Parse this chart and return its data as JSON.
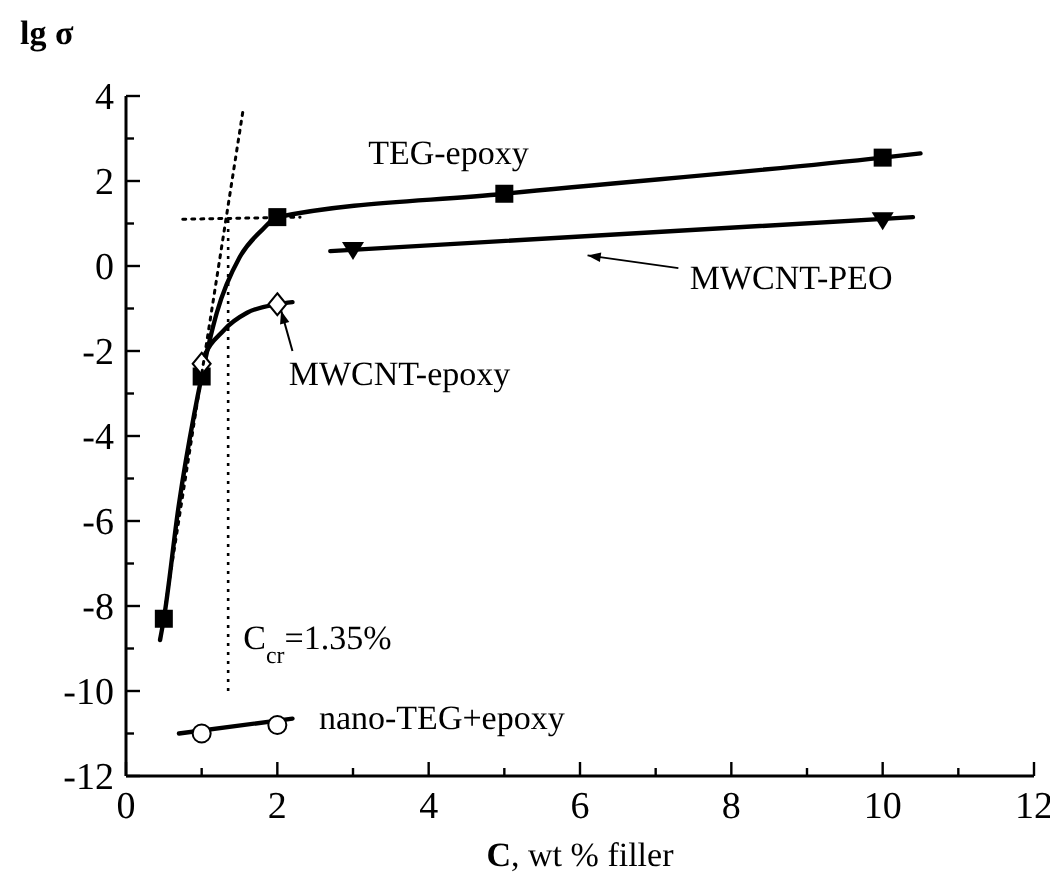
{
  "chart_data": {
    "type": "scatter",
    "xlabel": "C, wt % filler",
    "ylabel": "lg σ",
    "xlim": [
      0,
      12
    ],
    "ylim": [
      -12,
      4
    ],
    "xticks": [
      0,
      {
        "value": 1,
        "label": null
      },
      2,
      {
        "value": 3,
        "label": null
      },
      4,
      {
        "value": 5,
        "label": null
      },
      6,
      {
        "value": 7,
        "label": null
      },
      8,
      {
        "value": 9,
        "label": null
      },
      10,
      {
        "value": 11,
        "label": null
      },
      12
    ],
    "yticks": [
      -12,
      {
        "value": -11,
        "label": null
      },
      -10,
      {
        "value": -9,
        "label": null
      },
      -8,
      {
        "value": -7,
        "label": null
      },
      -6,
      {
        "value": -5,
        "label": null
      },
      -4,
      {
        "value": -3,
        "label": null
      },
      -2,
      {
        "value": -1,
        "label": null
      },
      0,
      {
        "value": 1,
        "label": null
      },
      2,
      {
        "value": 3,
        "label": null
      },
      4
    ],
    "grid": false,
    "series": [
      {
        "type": "line",
        "color": "#000000",
        "marker": "none",
        "line_style": "solid",
        "x": [
          0.45,
          0.5,
          0.7,
          0.9,
          1,
          1.2,
          1.5,
          1.8,
          2,
          5,
          10,
          10.5
        ],
        "values": [
          -8.8,
          -8.3,
          -5.6,
          -3.5,
          -2.6,
          -1.1,
          0.2,
          0.85,
          1.15,
          1.7,
          2.55,
          2.65
        ]
      },
      {
        "type": "scatter",
        "color": "#000000",
        "marker": "square",
        "x": [
          0.5,
          1,
          2,
          5,
          10
        ],
        "values": [
          -8.3,
          -2.6,
          1.15,
          1.7,
          2.55
        ]
      },
      {
        "type": "line",
        "color": "#000000",
        "marker": "none",
        "line_style": "solid",
        "x": [
          0.95,
          1,
          1.3,
          1.6,
          2,
          2.2
        ],
        "values": [
          -2.7,
          -2.3,
          -1.5,
          -1.1,
          -0.9,
          -0.85
        ]
      },
      {
        "type": "scatter",
        "color": "#000000",
        "marker": "diamond",
        "x": [
          1,
          2
        ],
        "values": [
          -2.3,
          -0.9
        ]
      },
      {
        "type": "line",
        "color": "#000000",
        "marker": "none",
        "line_style": "solid",
        "x": [
          2.7,
          10.4
        ],
        "values": [
          0.35,
          1.15
        ]
      },
      {
        "type": "scatter",
        "color": "#000000",
        "marker": "triangle",
        "x": [
          3,
          10
        ],
        "values": [
          0.4,
          1.1
        ]
      },
      {
        "type": "line",
        "color": "#000000",
        "marker": "none",
        "line_style": "solid",
        "x": [
          0.7,
          2.2
        ],
        "values": [
          -11,
          -10.65
        ]
      },
      {
        "type": "scatter",
        "color": "#000000",
        "marker": "circle",
        "x": [
          1,
          2
        ],
        "values": [
          -11,
          -10.8
        ]
      },
      {
        "type": "line",
        "color": "#000000",
        "marker": "none",
        "line_style": "dotted",
        "x": [
          0.45,
          1.55
        ],
        "values": [
          -8.8,
          3.7
        ]
      },
      {
        "type": "line",
        "color": "#000000",
        "marker": "none",
        "line_style": "dotted",
        "x": [
          0.75,
          2.3
        ],
        "values": [
          1.1,
          1.15
        ]
      }
    ],
    "ref_lines": [
      {
        "axis": "x",
        "value": 1.35,
        "line_style": "dotted",
        "color": "#000000"
      }
    ],
    "annotations": [
      "TEG-epoxy",
      "MWCNT-epoxy",
      "MWCNT-PEO",
      "C$_{cr}$=1.35%",
      "nano-TEG+epoxy"
    ]
  }
}
